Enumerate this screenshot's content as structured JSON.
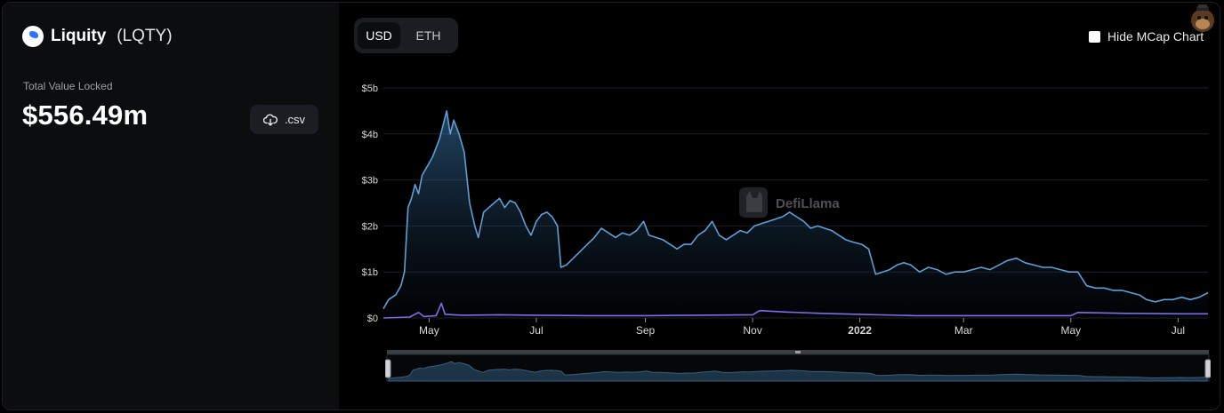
{
  "protocol": {
    "name": "Liquity",
    "ticker": "(LQTY)",
    "logo_icon": "liquity-logo-icon"
  },
  "tvl": {
    "label": "Total Value Locked",
    "value": "$556.49m"
  },
  "csv_button": {
    "label": ".csv",
    "icon": "cloud-download-icon"
  },
  "currency_toggle": {
    "options": [
      "USD",
      "ETH"
    ],
    "selected": "USD"
  },
  "hide_mcap": {
    "label": "Hide MCap Chart",
    "checked": false
  },
  "watermark": {
    "text": "DefiLlama"
  },
  "colors": {
    "tvl_line": "#5f9fd6",
    "mcap_line": "#7b6ee8",
    "background": "#000000",
    "panel": "#0b0d0f"
  },
  "chart_data": {
    "type": "area",
    "title": "",
    "xlabel": "",
    "ylabel": "",
    "ylim": [
      0,
      5
    ],
    "y_unit": "$b",
    "y_ticks": [
      "$0",
      "$1b",
      "$2b",
      "$3b",
      "$4b",
      "$5b"
    ],
    "x_ticks": [
      {
        "label": "May",
        "date": "2021-05-01"
      },
      {
        "label": "Jul",
        "date": "2021-07-01"
      },
      {
        "label": "Sep",
        "date": "2021-09-01"
      },
      {
        "label": "Nov",
        "date": "2021-11-01"
      },
      {
        "label": "2022",
        "date": "2022-01-01"
      },
      {
        "label": "Mar",
        "date": "2022-03-01"
      },
      {
        "label": "May",
        "date": "2022-05-01"
      },
      {
        "label": "Jul",
        "date": "2022-07-01"
      }
    ],
    "grid": true,
    "series": [
      {
        "color": "#5f9fd6",
        "points": [
          [
            "2021-04-05",
            0.2
          ],
          [
            "2021-04-08",
            0.4
          ],
          [
            "2021-04-12",
            0.5
          ],
          [
            "2021-04-15",
            0.7
          ],
          [
            "2021-04-17",
            1.0
          ],
          [
            "2021-04-19",
            2.4
          ],
          [
            "2021-04-21",
            2.6
          ],
          [
            "2021-04-23",
            2.9
          ],
          [
            "2021-04-25",
            2.7
          ],
          [
            "2021-04-27",
            3.1
          ],
          [
            "2021-04-30",
            3.3
          ],
          [
            "2021-05-03",
            3.5
          ],
          [
            "2021-05-05",
            3.7
          ],
          [
            "2021-05-07",
            3.9
          ],
          [
            "2021-05-09",
            4.2
          ],
          [
            "2021-05-11",
            4.5
          ],
          [
            "2021-05-13",
            4.0
          ],
          [
            "2021-05-15",
            4.3
          ],
          [
            "2021-05-18",
            4.0
          ],
          [
            "2021-05-21",
            3.6
          ],
          [
            "2021-05-24",
            2.5
          ],
          [
            "2021-05-27",
            2.0
          ],
          [
            "2021-05-29",
            1.75
          ],
          [
            "2021-06-01",
            2.3
          ],
          [
            "2021-06-04",
            2.4
          ],
          [
            "2021-06-07",
            2.5
          ],
          [
            "2021-06-10",
            2.6
          ],
          [
            "2021-06-13",
            2.4
          ],
          [
            "2021-06-16",
            2.55
          ],
          [
            "2021-06-19",
            2.5
          ],
          [
            "2021-06-22",
            2.3
          ],
          [
            "2021-06-25",
            2.0
          ],
          [
            "2021-06-28",
            1.8
          ],
          [
            "2021-07-01",
            2.1
          ],
          [
            "2021-07-04",
            2.25
          ],
          [
            "2021-07-07",
            2.3
          ],
          [
            "2021-07-10",
            2.2
          ],
          [
            "2021-07-13",
            2.0
          ],
          [
            "2021-07-15",
            1.1
          ],
          [
            "2021-07-18",
            1.15
          ],
          [
            "2021-07-22",
            1.3
          ],
          [
            "2021-07-26",
            1.45
          ],
          [
            "2021-07-30",
            1.6
          ],
          [
            "2021-08-03",
            1.75
          ],
          [
            "2021-08-07",
            1.95
          ],
          [
            "2021-08-11",
            1.85
          ],
          [
            "2021-08-15",
            1.75
          ],
          [
            "2021-08-19",
            1.85
          ],
          [
            "2021-08-23",
            1.8
          ],
          [
            "2021-08-27",
            1.9
          ],
          [
            "2021-08-31",
            2.1
          ],
          [
            "2021-09-03",
            1.8
          ],
          [
            "2021-09-07",
            1.75
          ],
          [
            "2021-09-11",
            1.7
          ],
          [
            "2021-09-15",
            1.6
          ],
          [
            "2021-09-19",
            1.5
          ],
          [
            "2021-09-23",
            1.6
          ],
          [
            "2021-09-27",
            1.6
          ],
          [
            "2021-10-01",
            1.8
          ],
          [
            "2021-10-05",
            1.9
          ],
          [
            "2021-10-09",
            2.1
          ],
          [
            "2021-10-13",
            1.8
          ],
          [
            "2021-10-17",
            1.7
          ],
          [
            "2021-10-21",
            1.8
          ],
          [
            "2021-10-25",
            1.9
          ],
          [
            "2021-10-29",
            1.85
          ],
          [
            "2021-11-02",
            2.0
          ],
          [
            "2021-11-06",
            2.05
          ],
          [
            "2021-11-10",
            2.1
          ],
          [
            "2021-11-14",
            2.15
          ],
          [
            "2021-11-18",
            2.2
          ],
          [
            "2021-11-22",
            2.3
          ],
          [
            "2021-11-26",
            2.2
          ],
          [
            "2021-11-30",
            2.1
          ],
          [
            "2021-12-04",
            1.95
          ],
          [
            "2021-12-08",
            2.0
          ],
          [
            "2021-12-12",
            1.95
          ],
          [
            "2021-12-16",
            1.9
          ],
          [
            "2021-12-20",
            1.8
          ],
          [
            "2021-12-24",
            1.7
          ],
          [
            "2021-12-28",
            1.65
          ],
          [
            "2022-01-02",
            1.6
          ],
          [
            "2022-01-06",
            1.5
          ],
          [
            "2022-01-10",
            0.95
          ],
          [
            "2022-01-14",
            1.0
          ],
          [
            "2022-01-18",
            1.05
          ],
          [
            "2022-01-22",
            1.15
          ],
          [
            "2022-01-26",
            1.2
          ],
          [
            "2022-01-30",
            1.15
          ],
          [
            "2022-02-04",
            1.0
          ],
          [
            "2022-02-09",
            1.1
          ],
          [
            "2022-02-14",
            1.05
          ],
          [
            "2022-02-19",
            0.95
          ],
          [
            "2022-02-24",
            1.0
          ],
          [
            "2022-03-01",
            1.0
          ],
          [
            "2022-03-06",
            1.05
          ],
          [
            "2022-03-11",
            1.1
          ],
          [
            "2022-03-16",
            1.05
          ],
          [
            "2022-03-21",
            1.15
          ],
          [
            "2022-03-26",
            1.25
          ],
          [
            "2022-03-31",
            1.3
          ],
          [
            "2022-04-05",
            1.2
          ],
          [
            "2022-04-10",
            1.15
          ],
          [
            "2022-04-15",
            1.1
          ],
          [
            "2022-04-20",
            1.1
          ],
          [
            "2022-04-25",
            1.05
          ],
          [
            "2022-04-30",
            1.0
          ],
          [
            "2022-05-05",
            1.0
          ],
          [
            "2022-05-10",
            0.7
          ],
          [
            "2022-05-15",
            0.65
          ],
          [
            "2022-05-20",
            0.65
          ],
          [
            "2022-05-25",
            0.6
          ],
          [
            "2022-05-30",
            0.6
          ],
          [
            "2022-06-04",
            0.55
          ],
          [
            "2022-06-09",
            0.5
          ],
          [
            "2022-06-13",
            0.4
          ],
          [
            "2022-06-18",
            0.35
          ],
          [
            "2022-06-23",
            0.4
          ],
          [
            "2022-06-28",
            0.4
          ],
          [
            "2022-07-03",
            0.45
          ],
          [
            "2022-07-08",
            0.4
          ],
          [
            "2022-07-13",
            0.45
          ],
          [
            "2022-07-18",
            0.55
          ]
        ]
      },
      {
        "color": "#7b6ee8",
        "points": [
          [
            "2021-04-05",
            0.0
          ],
          [
            "2021-04-20",
            0.02
          ],
          [
            "2021-04-25",
            0.12
          ],
          [
            "2021-04-28",
            0.03
          ],
          [
            "2021-05-05",
            0.05
          ],
          [
            "2021-05-08",
            0.32
          ],
          [
            "2021-05-10",
            0.08
          ],
          [
            "2021-05-20",
            0.06
          ],
          [
            "2021-06-10",
            0.07
          ],
          [
            "2021-07-01",
            0.06
          ],
          [
            "2021-08-01",
            0.05
          ],
          [
            "2021-09-01",
            0.05
          ],
          [
            "2021-10-01",
            0.06
          ],
          [
            "2021-11-01",
            0.07
          ],
          [
            "2021-11-05",
            0.16
          ],
          [
            "2021-11-20",
            0.13
          ],
          [
            "2021-12-10",
            0.1
          ],
          [
            "2022-01-01",
            0.08
          ],
          [
            "2022-02-01",
            0.05
          ],
          [
            "2022-03-01",
            0.05
          ],
          [
            "2022-04-01",
            0.05
          ],
          [
            "2022-05-01",
            0.05
          ],
          [
            "2022-05-05",
            0.12
          ],
          [
            "2022-06-01",
            0.1
          ],
          [
            "2022-07-01",
            0.09
          ],
          [
            "2022-07-18",
            0.09
          ]
        ]
      }
    ]
  }
}
